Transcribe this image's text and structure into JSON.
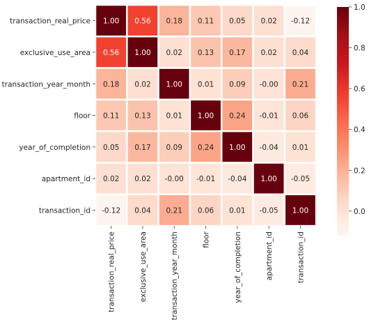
{
  "chart_data": {
    "type": "heatmap",
    "title": "",
    "xlabel": "",
    "ylabel": "",
    "labels": [
      "transaction_real_price",
      "exclusive_use_area",
      "transaction_year_month",
      "floor",
      "year_of_completion",
      "apartment_id",
      "transaction_id"
    ],
    "matrix": [
      [
        1.0,
        0.56,
        0.18,
        0.11,
        0.05,
        0.02,
        -0.12
      ],
      [
        0.56,
        1.0,
        0.02,
        0.13,
        0.17,
        0.02,
        0.04
      ],
      [
        0.18,
        0.02,
        1.0,
        0.01,
        0.09,
        -0.0,
        0.21
      ],
      [
        0.11,
        0.13,
        0.01,
        1.0,
        0.24,
        -0.01,
        0.06
      ],
      [
        0.05,
        0.17,
        0.09,
        0.24,
        1.0,
        -0.04,
        0.01
      ],
      [
        0.02,
        0.02,
        -0.0,
        -0.01,
        -0.04,
        1.0,
        -0.05
      ],
      [
        -0.12,
        0.04,
        0.21,
        0.06,
        0.01,
        -0.05,
        1.0
      ]
    ],
    "value_format": "2 decimals",
    "colormap": "Reds",
    "colormap_stops": [
      "#fff5f0",
      "#fee0d2",
      "#fcbba1",
      "#fc9272",
      "#fb6a4a",
      "#ef3b2c",
      "#cb181d",
      "#a50f15",
      "#67000d"
    ],
    "vmin": -0.12,
    "vmax": 1.0,
    "colorbar": {
      "ticks": [
        -0.0,
        0.2,
        0.4,
        0.6,
        0.8,
        1.0
      ],
      "tick_labels": [
        "0.0",
        "0.2",
        "0.4",
        "0.6",
        "0.8",
        "1.0"
      ]
    },
    "cell_border_color": "#ffffff",
    "text_dark": "#262626",
    "text_light": "#ffffff"
  }
}
